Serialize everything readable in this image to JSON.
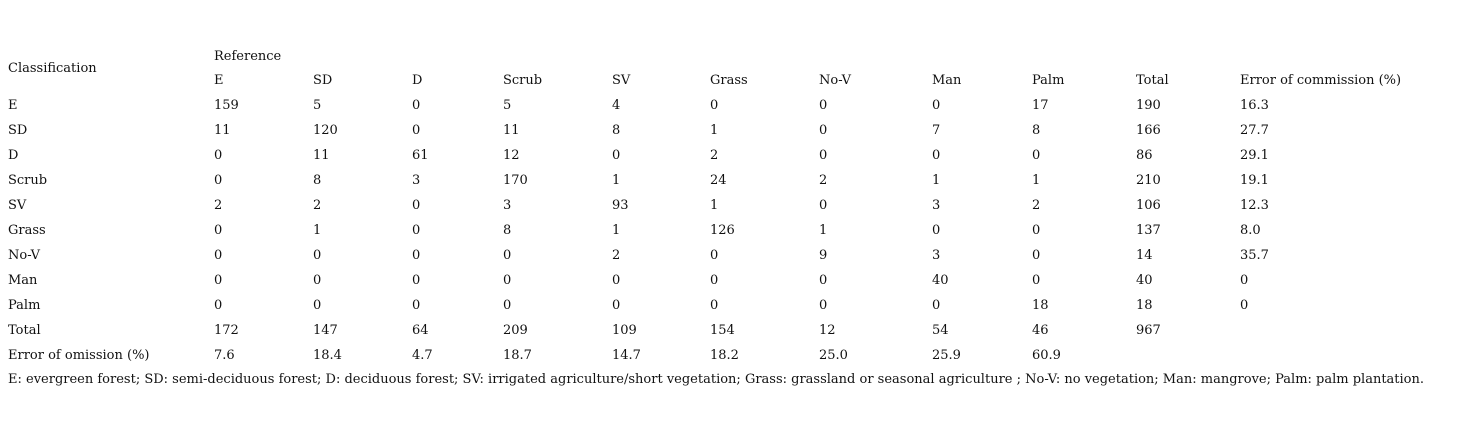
{
  "table": {
    "stub_header": "Classification",
    "reference_header": "Reference",
    "columns": [
      "E",
      "SD",
      "D",
      "Scrub",
      "SV",
      "Grass",
      "No-V",
      "Man",
      "Palm",
      "Total",
      "Error of commission (%)"
    ],
    "rows": [
      {
        "label": "E",
        "cells": [
          "159",
          "5",
          "0",
          "5",
          "4",
          "0",
          "0",
          "0",
          "17",
          "190",
          "16.3"
        ]
      },
      {
        "label": "SD",
        "cells": [
          "11",
          "120",
          "0",
          "11",
          "8",
          "1",
          "0",
          "7",
          "8",
          "166",
          "27.7"
        ]
      },
      {
        "label": "D",
        "cells": [
          "0",
          "11",
          "61",
          "12",
          "0",
          "2",
          "0",
          "0",
          "0",
          "86",
          "29.1"
        ]
      },
      {
        "label": "Scrub",
        "cells": [
          "0",
          "8",
          "3",
          "170",
          "1",
          "24",
          "2",
          "1",
          "1",
          "210",
          "19.1"
        ]
      },
      {
        "label": "SV",
        "cells": [
          "2",
          "2",
          "0",
          "3",
          "93",
          "1",
          "0",
          "3",
          "2",
          "106",
          "12.3"
        ]
      },
      {
        "label": "Grass",
        "cells": [
          "0",
          "1",
          "0",
          "8",
          "1",
          "126",
          "1",
          "0",
          "0",
          "137",
          "8.0"
        ]
      },
      {
        "label": "No-V",
        "cells": [
          "0",
          "0",
          "0",
          "0",
          "2",
          "0",
          "9",
          "3",
          "0",
          "14",
          "35.7"
        ]
      },
      {
        "label": "Man",
        "cells": [
          "0",
          "0",
          "0",
          "0",
          "0",
          "0",
          "0",
          "40",
          "0",
          "40",
          "0"
        ]
      },
      {
        "label": "Palm",
        "cells": [
          "0",
          "0",
          "0",
          "0",
          "0",
          "0",
          "0",
          "0",
          "18",
          "18",
          "0"
        ]
      },
      {
        "label": "Total",
        "cells": [
          "172",
          "147",
          "64",
          "209",
          "109",
          "154",
          "12",
          "54",
          "46",
          "967",
          ""
        ]
      },
      {
        "label": "Error of omission (%)",
        "cells": [
          "7.6",
          "18.4",
          "4.7",
          "18.7",
          "14.7",
          "18.2",
          "25.0",
          "25.9",
          "60.9",
          "",
          ""
        ]
      }
    ]
  },
  "footnote": "E: evergreen forest; SD: semi-deciduous forest; D: deciduous forest; SV: irrigated agriculture/short vegetation; Grass: grassland or seasonal agriculture ; No-V: no vegetation; Man: mangrove; Palm: palm plantation."
}
